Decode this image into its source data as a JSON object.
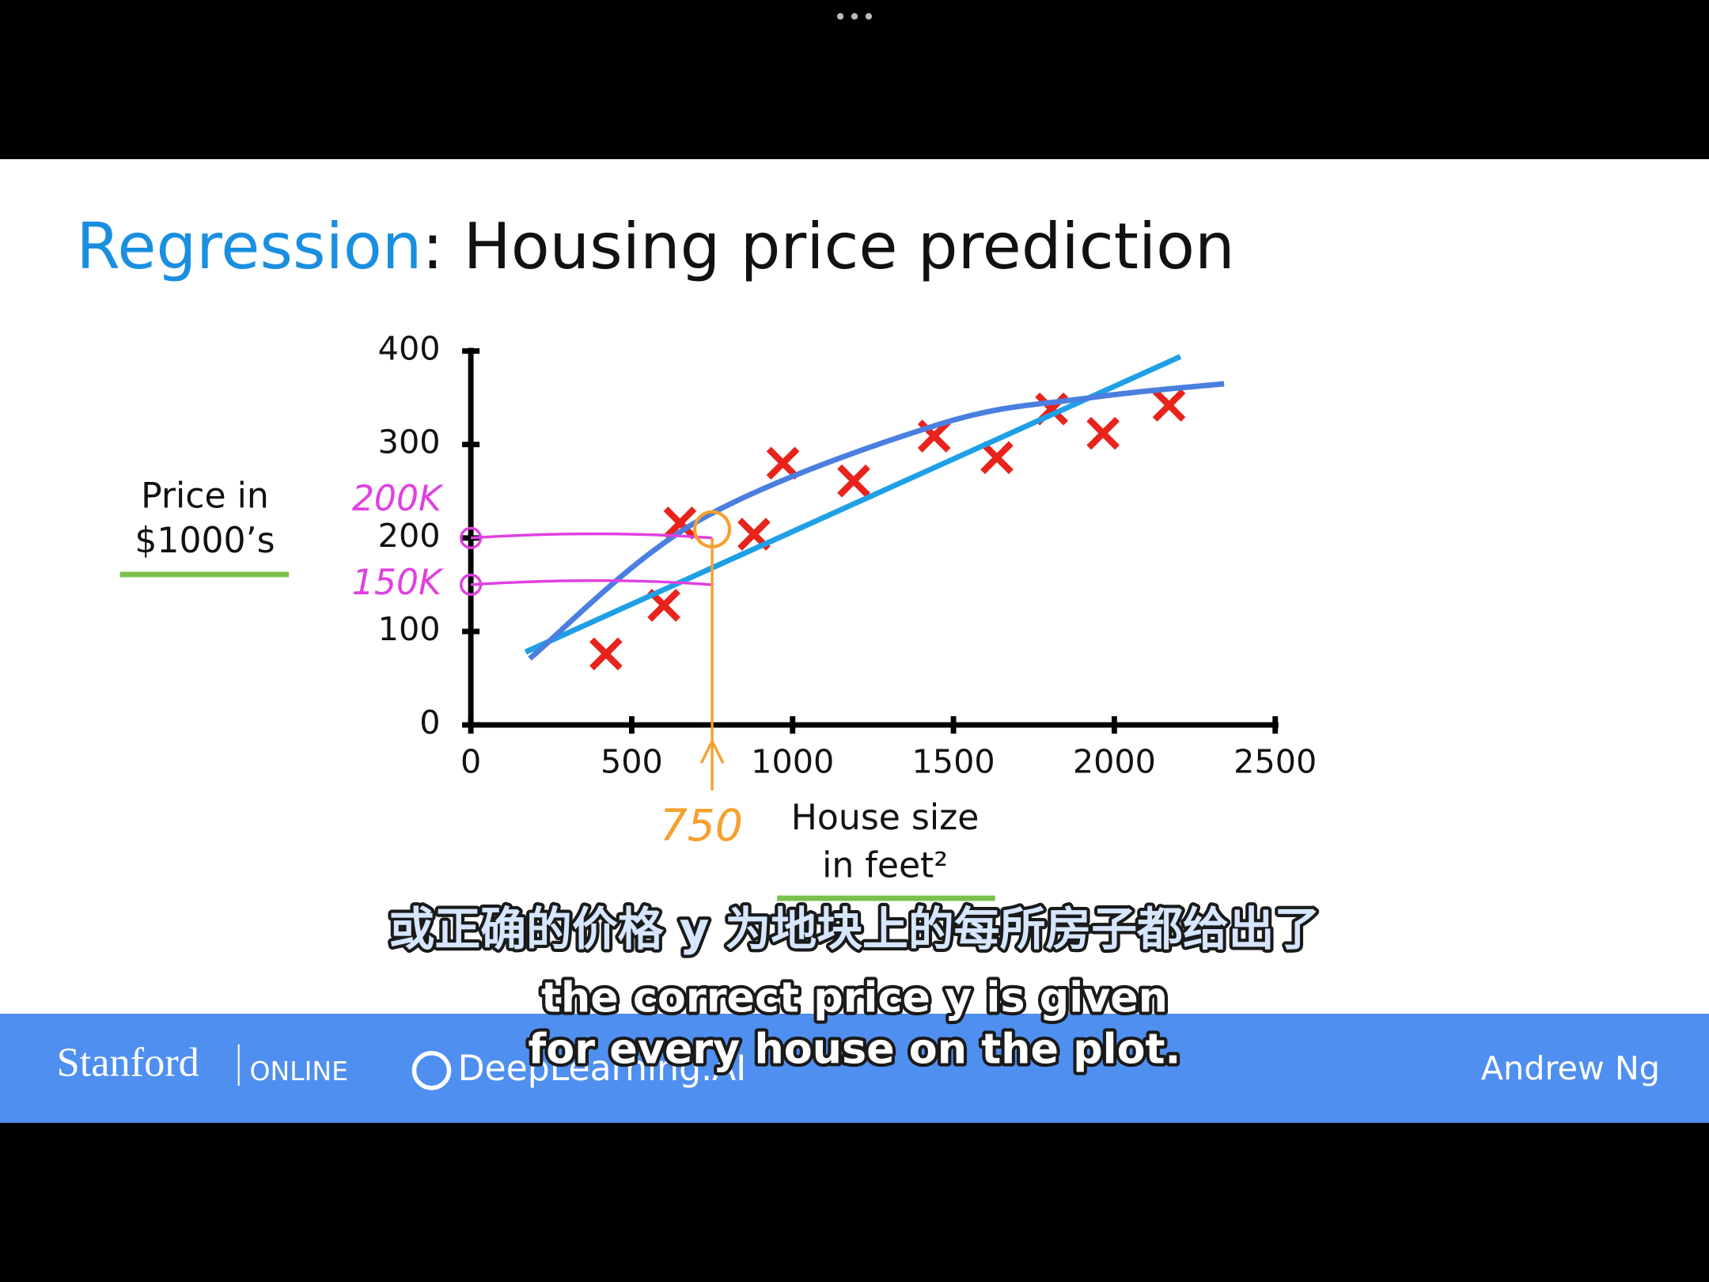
{
  "slide": {
    "title_highlight": "Regression",
    "title_rest": ": Housing price prediction"
  },
  "chart_data": {
    "type": "scatter",
    "y_label": [
      "Price in",
      "$1000’s"
    ],
    "x_label": [
      "House size",
      "in feet²"
    ],
    "xlim": [
      0,
      2500
    ],
    "xticks": [
      0,
      500,
      1000,
      1500,
      2000,
      2500
    ],
    "ylim": [
      0,
      400
    ],
    "yticks": [
      0,
      100,
      200,
      300,
      400
    ],
    "series": [
      {
        "type": "scatter",
        "color": "#e8231c",
        "x": [
          420,
          600,
          650,
          880,
          970,
          1190,
          1440,
          1635,
          1805,
          1965,
          2170
        ],
        "values": [
          76,
          128,
          216,
          204,
          280,
          261,
          309,
          286,
          338,
          312,
          342
        ]
      },
      {
        "type": "line",
        "color": "#1fa0e6",
        "x": [
          170,
          2205
        ],
        "values": [
          78,
          394
        ]
      },
      {
        "type": "line",
        "color": "#4a7fe0",
        "x": [
          183,
          705,
          1450,
          1924,
          2341
        ],
        "values": [
          71,
          218,
          321,
          350,
          365
        ]
      }
    ],
    "annotations": [
      {
        "axis": "y",
        "value": 200,
        "text": "200K",
        "color": "#e040e0"
      },
      {
        "axis": "y",
        "value": 150,
        "text": "150K",
        "color": "#e040e0"
      },
      {
        "axis": "x",
        "value": 750,
        "text": "750",
        "color": "#f5a030"
      }
    ]
  },
  "subtitles": {
    "zh": "或正确的价格 y 为地块上的每所房子都给出了",
    "en": [
      "the correct price y is given",
      "for every house on the plot."
    ]
  },
  "footer": {
    "left": "Stanford",
    "left_small": "ONLINE",
    "middle": "DeepLearning.AI",
    "right": "Andrew Ng"
  }
}
